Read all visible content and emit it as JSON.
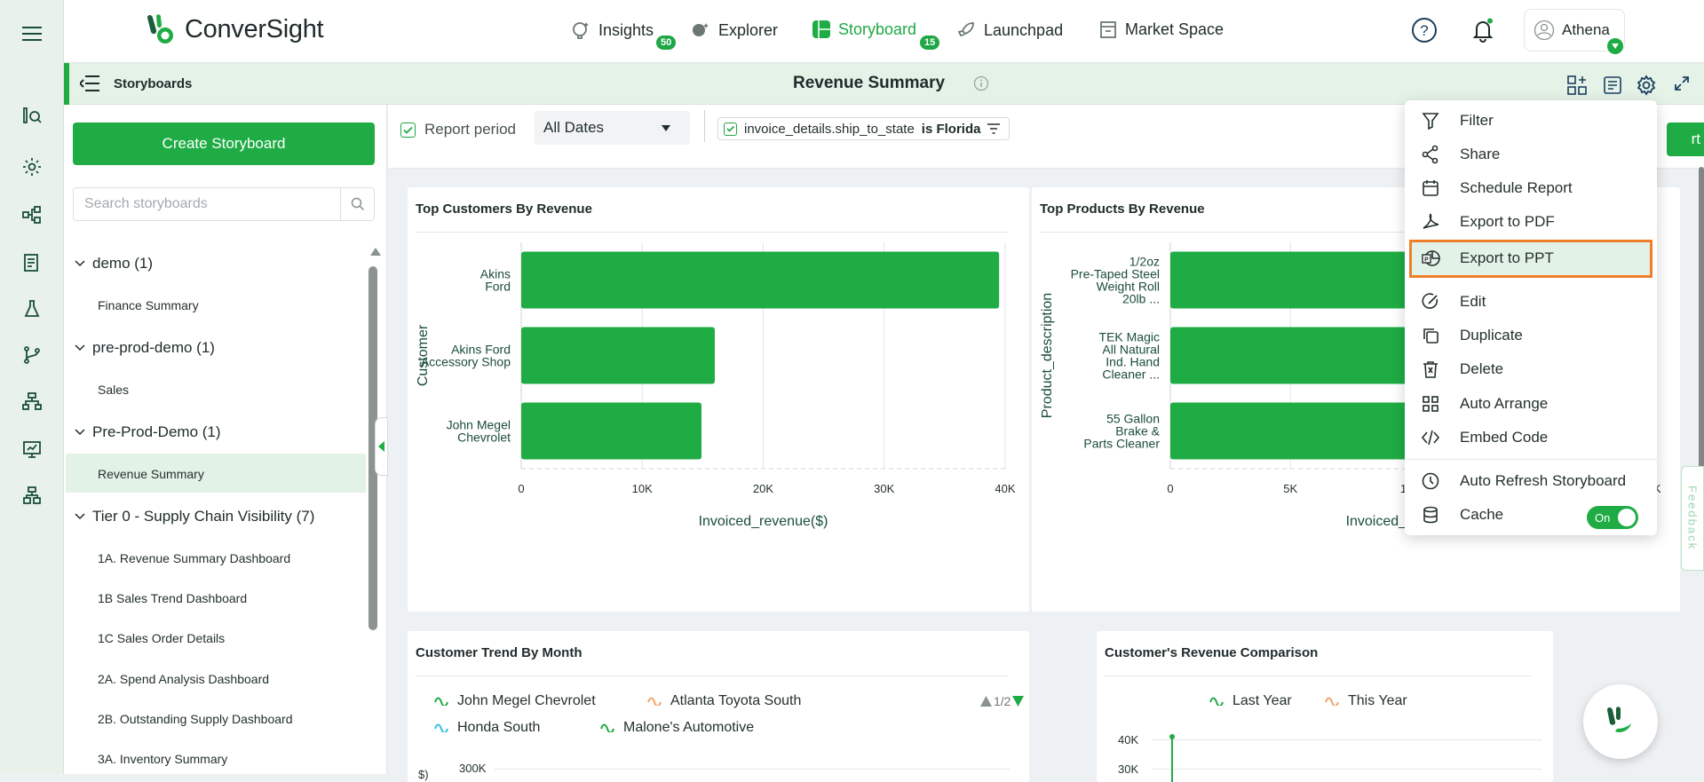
{
  "brand": {
    "name": "ConverSight"
  },
  "nav": {
    "items": [
      {
        "label": "Insights",
        "badge": "50"
      },
      {
        "label": "Explorer",
        "badge": ""
      },
      {
        "label": "Storyboard",
        "badge": "15"
      },
      {
        "label": "Launchpad",
        "badge": ""
      },
      {
        "label": "Market Space",
        "badge": ""
      }
    ],
    "active": "Storyboard",
    "user": "Athena"
  },
  "subheader": {
    "section_label": "Storyboards",
    "title": "Revenue Summary"
  },
  "sidebar": {
    "create_label": "Create Storyboard",
    "search_placeholder": "Search storyboards",
    "groups": [
      {
        "label": "demo (1)",
        "items": [
          "Finance Summary"
        ]
      },
      {
        "label": "pre-prod-demo (1)",
        "items": [
          "Sales"
        ]
      },
      {
        "label": "Pre-Prod-Demo (1)",
        "items": [
          "Revenue Summary"
        ]
      },
      {
        "label": "Tier 0 - Supply Chain Visibility (7)",
        "items": [
          "1A. Revenue Summary Dashboard",
          "1B Sales Trend Dashboard",
          "1C Sales Order Details",
          "2A. Spend Analysis Dashboard",
          "2B. Outstanding Supply Dashboard",
          "3A. Inventory Summary"
        ]
      }
    ],
    "selected": "Revenue Summary"
  },
  "filters": {
    "report_period_label": "Report period",
    "report_period_value": "All Dates",
    "condition_field": "invoice_details.ship_to_state",
    "condition_op": "is Florida",
    "partial_button_text": "rt"
  },
  "menu": {
    "items": [
      "Filter",
      "Share",
      "Schedule Report",
      "Export to PDF",
      "Export to PPT",
      "Edit",
      "Duplicate",
      "Delete",
      "Auto Arrange",
      "Embed Code",
      "Auto Refresh Storyboard",
      "Cache"
    ],
    "highlighted": "Export to PPT",
    "cache_toggle": "On"
  },
  "feedback_label": "Feedback",
  "colors": {
    "accent": "#1fac44",
    "highlight_border": "#f07f2a",
    "text_dark_green": "#1b4d3b"
  },
  "chart_data": [
    {
      "type": "bar",
      "title": "Top Customers By Revenue",
      "orientation": "horizontal",
      "categories": [
        "Akins Ford",
        "Akins Ford Accessory Shop",
        "John Megel Chevrolet"
      ],
      "category_lines": [
        [
          "Akins",
          "Ford"
        ],
        [
          "Akins Ford",
          "Accessory Shop"
        ],
        [
          "John Megel",
          "Chevrolet"
        ]
      ],
      "values": [
        39500,
        16000,
        14900
      ],
      "xlabel": "Invoiced_revenue($)",
      "ylabel": "Customer",
      "xlim": [
        0,
        40000
      ],
      "ticks": [
        "0",
        "10K",
        "20K",
        "30K",
        "40K"
      ],
      "grid": true
    },
    {
      "type": "bar",
      "title": "Top Products By Revenue",
      "orientation": "horizontal",
      "categories": [
        "1/2oz Pre-Taped Steel Weight Roll 20lb ...",
        "TEK Magic All Natural Ind. Hand Cleaner ...",
        "55 Gallon Brake & Parts Cleaner"
      ],
      "category_lines": [
        [
          "1/2oz",
          "Pre-Taped Steel",
          "Weight Roll",
          "20lb ..."
        ],
        [
          "TEK Magic",
          "All Natural",
          "Ind. Hand",
          "Cleaner ..."
        ],
        [
          "55 Gallon",
          "Brake &",
          "Parts Cleaner"
        ]
      ],
      "values": [
        20000,
        20000,
        20000
      ],
      "xlabel": "Invoiced_revenue($)",
      "ylabel": "Product_description",
      "xlim": [
        0,
        20000
      ],
      "ticks": [
        "0",
        "5K",
        "10K",
        "15K",
        "20K"
      ],
      "grid": true
    },
    {
      "type": "line",
      "title": "Customer Trend By Month",
      "legend": [
        "John Megel Chevrolet",
        "Atlanta Toyota South",
        "Honda South",
        "Malone's Automotive"
      ],
      "legend_colors": [
        "#1fac44",
        "#f4a26b",
        "#35c3e3",
        "#1fac44"
      ],
      "legend_page": "1/2",
      "y_ticks_visible": [
        "300K"
      ],
      "ylabel_fragment": "$)"
    },
    {
      "type": "line",
      "title": "Customer's Revenue Comparison",
      "legend": [
        "Last Year",
        "This Year"
      ],
      "legend_colors": [
        "#1fac44",
        "#f4a26b"
      ],
      "y_ticks_visible": [
        "40K",
        "30K"
      ]
    }
  ]
}
